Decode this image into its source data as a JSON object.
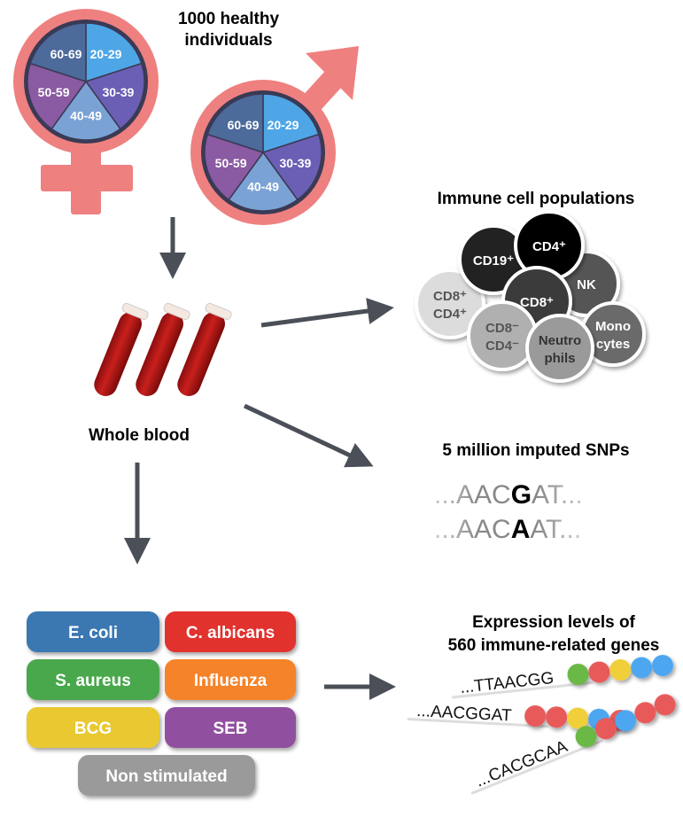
{
  "cohort": {
    "title_line1": "1000 healthy",
    "title_line2": "individuals",
    "age_groups": [
      "20-29",
      "30-39",
      "40-49",
      "50-59",
      "60-69"
    ],
    "age_colors": [
      "#4ea6e6",
      "#6a5fb4",
      "#7ba2d4",
      "#8a5aa2",
      "#4c6a9a"
    ],
    "symbol_color": "#ef8080"
  },
  "blood": {
    "label": "Whole blood"
  },
  "immune": {
    "title": "Immune cell populations",
    "cells": [
      {
        "line1": "CD8⁺",
        "line2": "CD4⁺",
        "fill": "#dcdcdc",
        "text": "#555555"
      },
      {
        "line1": "CD19⁺",
        "line2": "",
        "fill": "#222222",
        "text": "#ffffff"
      },
      {
        "line1": "NK",
        "line2": "",
        "fill": "#555555",
        "text": "#ffffff"
      },
      {
        "line1": "CD4⁺",
        "line2": "",
        "fill": "#000000",
        "text": "#ffffff"
      },
      {
        "line1": "CD8⁺",
        "line2": "",
        "fill": "#3a3a3a",
        "text": "#ffffff"
      },
      {
        "line1": "CD8⁻",
        "line2": "CD4⁻",
        "fill": "#b0b0b0",
        "text": "#555555"
      },
      {
        "line1": "Mono",
        "line2": "cytes",
        "fill": "#6a6a6a",
        "text": "#ffffff"
      },
      {
        "line1": "Neutro",
        "line2": "phils",
        "fill": "#9a9a9a",
        "text": "#333333"
      }
    ]
  },
  "snps": {
    "title": "5 million imputed SNPs",
    "seq1": {
      "pre": "...AAC",
      "snp": "G",
      "post": "AT..."
    },
    "seq2": {
      "pre": "...AAC",
      "snp": "A",
      "post": "AT..."
    }
  },
  "stimuli": [
    {
      "label": "E. coli",
      "color": "#3a78b2"
    },
    {
      "label": "C. albicans",
      "color": "#e1302e"
    },
    {
      "label": "S. aureus",
      "color": "#4aa84c"
    },
    {
      "label": "Influenza",
      "color": "#f5832a"
    },
    {
      "label": "BCG",
      "color": "#e9c831"
    },
    {
      "label": "SEB",
      "color": "#914fa0"
    },
    {
      "label": "Non stimulated",
      "color": "#9a9a9a"
    }
  ],
  "expression": {
    "title_line1": "Expression levels of",
    "title_line2": "560 immune-related genes",
    "sequences": [
      {
        "text": "...TTAACGG",
        "beads": [
          "#6ab844",
          "#e85a5a",
          "#f1cf3a",
          "#4ea6f0",
          "#4ea6f0"
        ]
      },
      {
        "text": "...AACGGAT",
        "beads": [
          "#e85a5a",
          "#e85a5a",
          "#f1cf3a",
          "#4ea6f0",
          "#e85a5a"
        ]
      },
      {
        "text": "...CACGCAA",
        "beads": [
          "#6ab844",
          "#e85a5a",
          "#4ea6f0",
          "#e85a5a",
          "#e85a5a"
        ]
      }
    ]
  },
  "arrow_color": "#4a4f58"
}
